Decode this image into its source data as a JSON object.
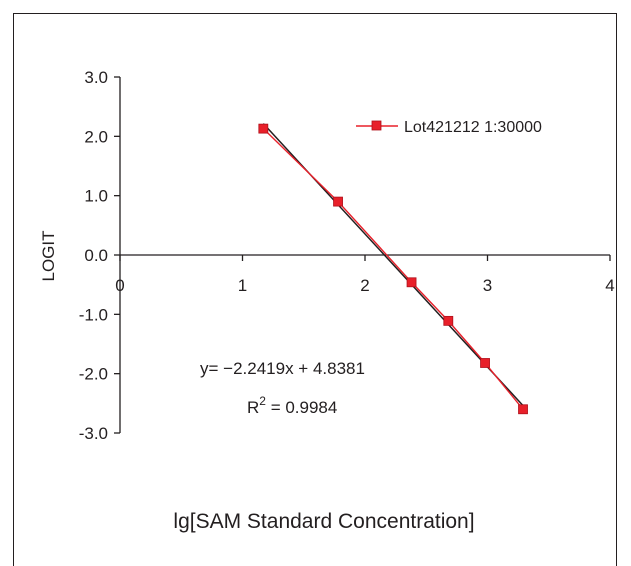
{
  "chart_data": {
    "type": "scatter",
    "xlabel": "lg[SAM Standard Concentration]",
    "ylabel": "LOGIT",
    "xlim": [
      0,
      4
    ],
    "ylim": [
      -3.0,
      3.0
    ],
    "x_ticks": [
      "0",
      "1",
      "2",
      "3",
      "4"
    ],
    "y_ticks": [
      "3.0",
      "2.0",
      "1.0",
      "0.0",
      "-1.0",
      "-2.0",
      "-3.0"
    ],
    "grid": false,
    "legend_position": "top-right",
    "series": [
      {
        "name": "Lot421212 1:30000",
        "color": "#e8202a",
        "marker": "square",
        "x": [
          1.17,
          1.78,
          2.38,
          2.68,
          2.98,
          3.29
        ],
        "y": [
          2.13,
          0.9,
          -0.46,
          -1.11,
          -1.82,
          -2.6
        ]
      }
    ],
    "fit_line": {
      "color": "#231f20",
      "slope": -2.2419,
      "intercept": 4.8381,
      "x_range": [
        1.17,
        3.29
      ]
    },
    "annotations": {
      "equation": "y= −2.2419x + 4.8381",
      "r2_prefix": "R",
      "r2_sup": "2",
      "r2_value": " = 0.9984"
    }
  }
}
